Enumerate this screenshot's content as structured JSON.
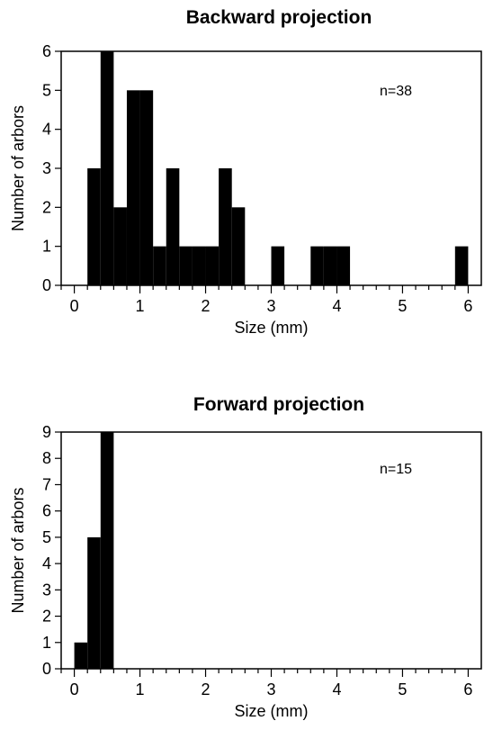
{
  "chart_data": [
    {
      "type": "bar",
      "title": "Backward projection",
      "xlabel": "Size (mm)",
      "ylabel": "Number of arbors",
      "annotation": "n=38",
      "bin_width": 0.2,
      "xlim": [
        -0.2,
        6.2
      ],
      "ylim": [
        0,
        6
      ],
      "xticks": [
        "0",
        "1",
        "2",
        "3",
        "4",
        "5",
        "6"
      ],
      "yticks": [
        "0",
        "1",
        "2",
        "3",
        "4",
        "5",
        "6"
      ],
      "bins": [
        0.2,
        0.4,
        0.6,
        0.8,
        1.0,
        1.2,
        1.4,
        1.6,
        1.8,
        2.0,
        2.2,
        2.4,
        2.6,
        2.8,
        3.0,
        3.2,
        3.4,
        3.6,
        3.8,
        4.0,
        4.2,
        4.4,
        4.6,
        4.8,
        5.0,
        5.2,
        5.4,
        5.6,
        5.8
      ],
      "values": [
        3,
        6,
        2,
        5,
        5,
        1,
        3,
        1,
        1,
        1,
        3,
        2,
        0,
        0,
        1,
        0,
        0,
        1,
        1,
        1,
        0,
        0,
        0,
        0,
        0,
        0,
        0,
        0,
        1
      ],
      "grid": false,
      "color": "#000000"
    },
    {
      "type": "bar",
      "title": "Forward projection",
      "xlabel": "Size (mm)",
      "ylabel": "Number of arbors",
      "annotation": "n=15",
      "bin_width": 0.2,
      "xlim": [
        -0.2,
        6.2
      ],
      "ylim": [
        0,
        9
      ],
      "xticks": [
        "0",
        "1",
        "2",
        "3",
        "4",
        "5",
        "6"
      ],
      "yticks": [
        "0",
        "1",
        "2",
        "3",
        "4",
        "5",
        "6",
        "7",
        "8",
        "9"
      ],
      "bins": [
        0.0,
        0.2,
        0.4
      ],
      "values": [
        1,
        5,
        9
      ],
      "grid": false,
      "color": "#000000"
    }
  ]
}
